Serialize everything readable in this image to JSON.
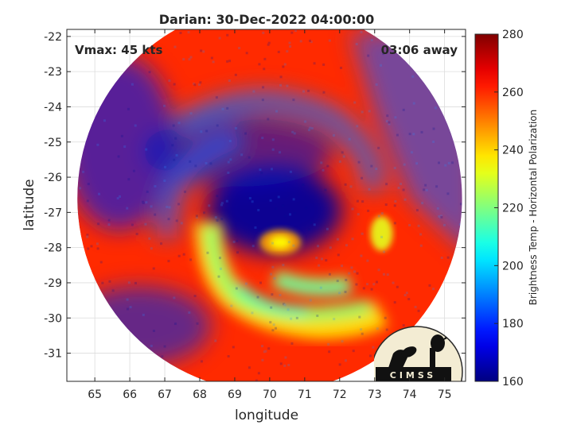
{
  "chart_data": {
    "type": "heatmap",
    "title": "Darian: 30-Dec-2022 04:00:00",
    "annotations": {
      "vmax": "Vmax: 45 kts",
      "away": "03:06 away"
    },
    "xlabel": "longitude",
    "ylabel": "latitude",
    "xlim": [
      64.2,
      75.6
    ],
    "ylim": [
      -31.8,
      -21.8
    ],
    "x_ticks": [
      65,
      66,
      67,
      68,
      69,
      70,
      71,
      72,
      73,
      74,
      75
    ],
    "y_ticks": [
      -22,
      -23,
      -24,
      -25,
      -26,
      -27,
      -28,
      -29,
      -30,
      -31
    ],
    "grid": true,
    "colorbar": {
      "label": "Brightness Temp - Horizontal Polarization",
      "range": [
        160,
        280
      ],
      "ticks": [
        160,
        180,
        200,
        220,
        240,
        260,
        280
      ],
      "colormap": "jet"
    },
    "swath": {
      "center": [
        70,
        -26.6
      ],
      "radius_deg": 5.5,
      "background_value": 260
    },
    "features": [
      {
        "name": "eye-warm-core",
        "center": [
          70.3,
          -27.85
        ],
        "value": 236
      },
      {
        "name": "southern-rainband",
        "center": [
          70,
          -27.4
        ],
        "value": 212
      },
      {
        "name": "eastern-fragment",
        "center": [
          73.2,
          -27.6
        ],
        "value": 232
      }
    ],
    "logo": {
      "text": "CIMSS"
    }
  }
}
